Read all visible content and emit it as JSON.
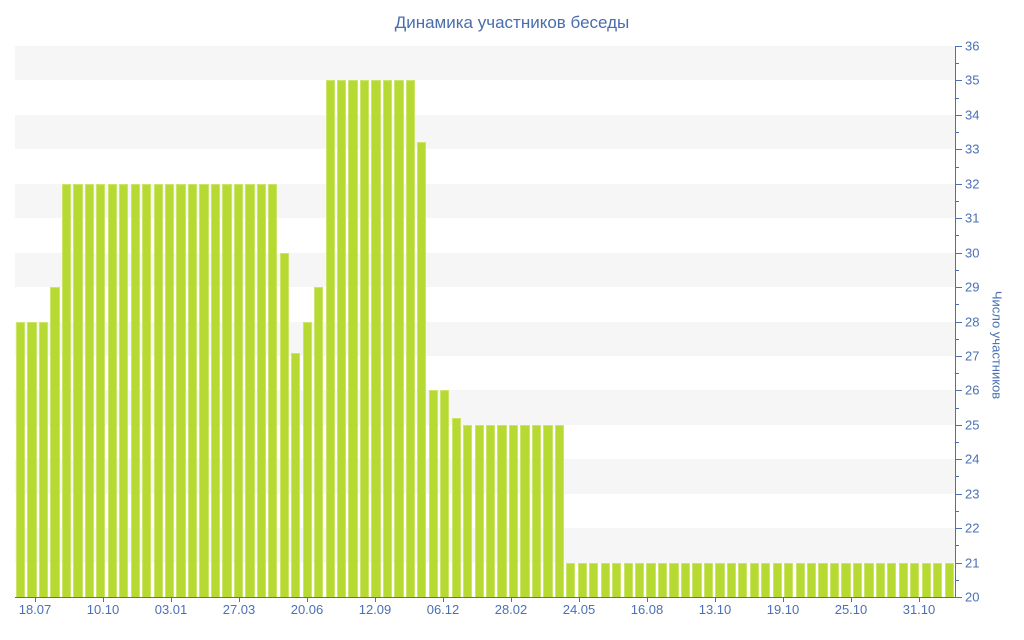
{
  "chart_data": {
    "type": "bar",
    "title": "Динамика участников беседы",
    "ylabel": "Число участников",
    "xlabel": "",
    "legend": "none",
    "y_axis_position": "right",
    "ylim": [
      20,
      36
    ],
    "y_major_tick_step": 1,
    "y_minor_tick_step": 0.5,
    "grid": "alternating horizontal bands (gray/white), one unit tall, gray starts at top",
    "x_tick_labels": [
      "18.07",
      "10.10",
      "03.01",
      "27.03",
      "20.06",
      "12.09",
      "06.12",
      "28.02",
      "24.05",
      "16.08",
      "13.10",
      "19.10",
      "25.10",
      "31.10"
    ],
    "values": [
      28,
      28,
      28,
      29,
      32,
      32,
      32,
      32,
      32,
      32,
      32,
      32,
      32,
      32,
      32,
      32,
      32,
      32,
      32,
      32,
      32,
      32,
      32,
      30,
      27.1,
      28,
      29,
      35,
      35,
      35,
      35,
      35,
      35,
      35,
      35,
      33.2,
      26,
      26,
      25.2,
      25,
      25,
      25,
      25,
      25,
      25,
      25,
      25,
      25,
      21,
      21,
      21,
      21,
      21,
      21,
      21,
      21,
      21,
      21,
      21,
      21,
      21,
      21,
      21,
      21,
      21,
      21,
      21,
      21,
      21,
      21,
      21,
      21,
      21,
      21,
      21,
      21,
      21,
      21,
      21,
      21,
      21,
      21
    ],
    "colors": {
      "bar": "#b7da33",
      "bar_edge": "#cde46a",
      "axis": "#4a70b5",
      "tick_label_text": "#4a70b5",
      "title_text": "#4a6dad",
      "band": "#f6f6f6",
      "background": "#ffffff"
    }
  }
}
